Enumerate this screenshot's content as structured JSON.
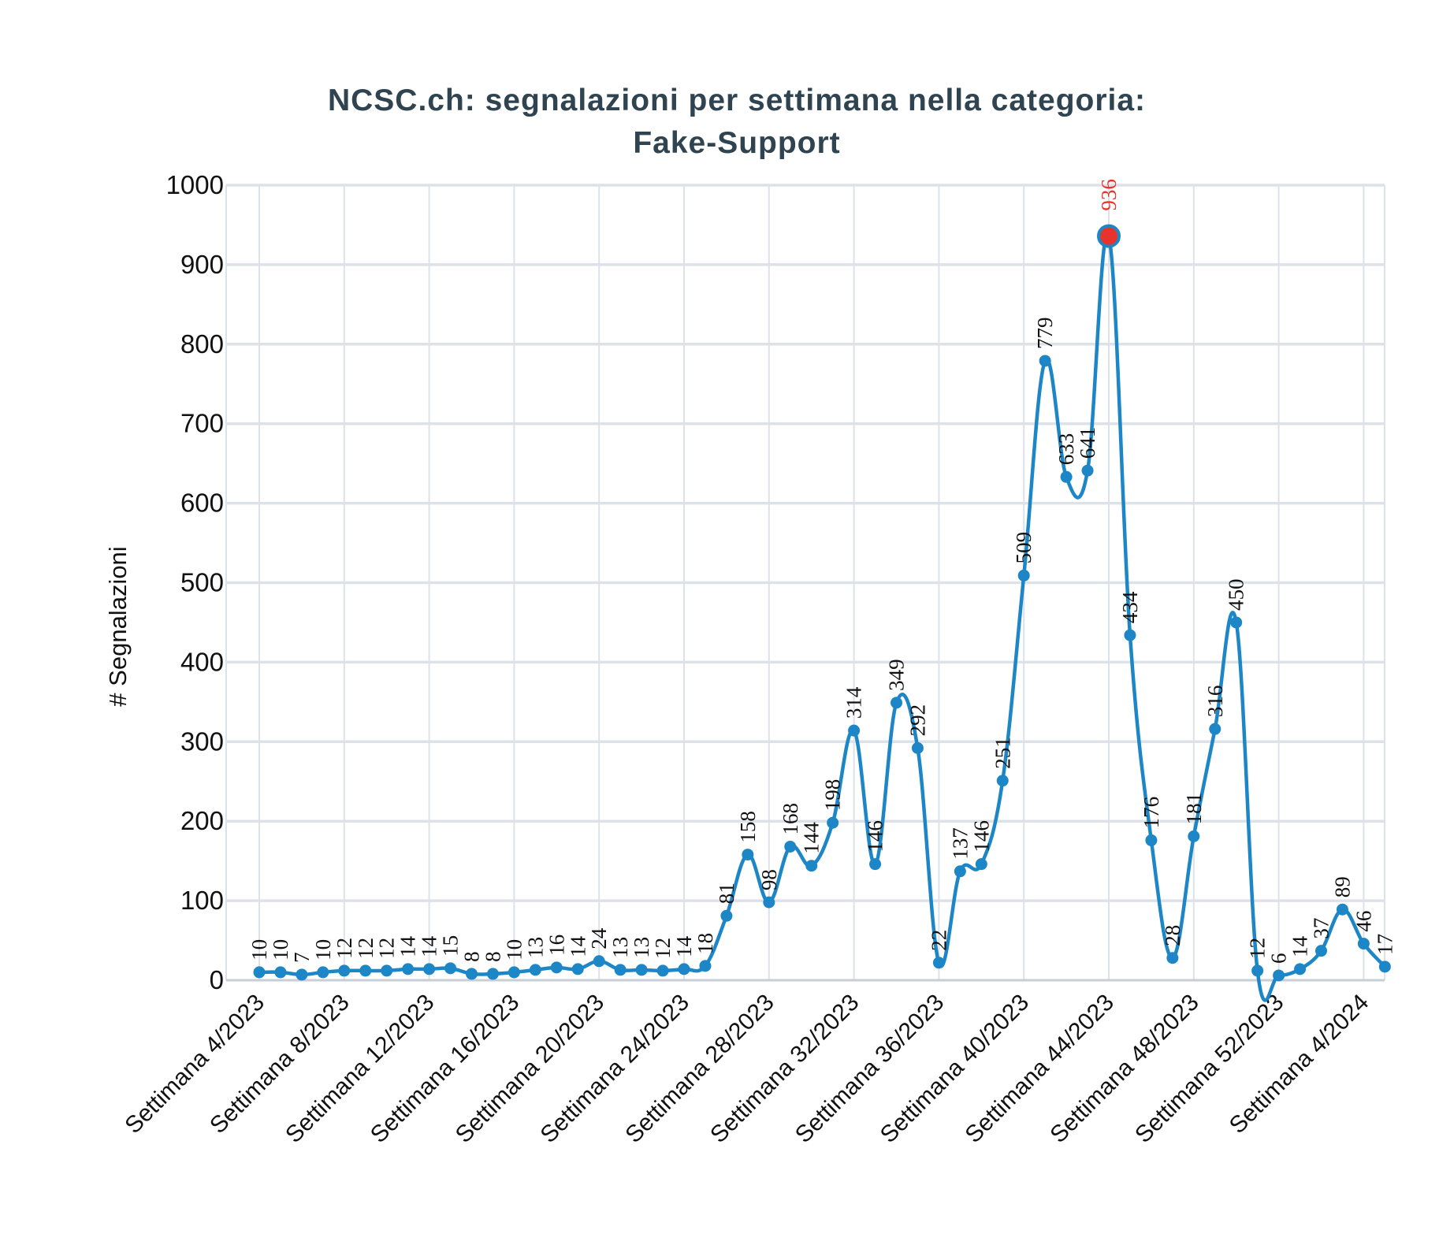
{
  "chart_data": {
    "type": "line",
    "title": "NCSC.ch: segnalazioni per settimana nella categoria:",
    "subtitle": "Fake-Support",
    "ylabel": "# Segnalazioni",
    "xlabel": "",
    "ylim": [
      0,
      1000
    ],
    "yticks": [
      0,
      100,
      200,
      300,
      400,
      500,
      600,
      700,
      800,
      900,
      1000
    ],
    "grid": true,
    "xtick_labels": [
      "Settimana 4/2023",
      "Settimana 8/2023",
      "Settimana 12/2023",
      "Settimana 16/2023",
      "Settimana 20/2023",
      "Settimana 24/2023",
      "Settimana 28/2023",
      "Settimana 32/2023",
      "Settimana 36/2023",
      "Settimana 40/2023",
      "Settimana 44/2023",
      "Settimana 48/2023",
      "Settimana 52/2023",
      "Settimana 4/2024"
    ],
    "x": [
      "Settimana 4/2023",
      "Settimana 5/2023",
      "Settimana 6/2023",
      "Settimana 7/2023",
      "Settimana 8/2023",
      "Settimana 9/2023",
      "Settimana 10/2023",
      "Settimana 11/2023",
      "Settimana 12/2023",
      "Settimana 13/2023",
      "Settimana 14/2023",
      "Settimana 15/2023",
      "Settimana 16/2023",
      "Settimana 17/2023",
      "Settimana 18/2023",
      "Settimana 19/2023",
      "Settimana 20/2023",
      "Settimana 21/2023",
      "Settimana 22/2023",
      "Settimana 23/2023",
      "Settimana 24/2023",
      "Settimana 25/2023",
      "Settimana 26/2023",
      "Settimana 27/2023",
      "Settimana 28/2023",
      "Settimana 29/2023",
      "Settimana 30/2023",
      "Settimana 31/2023",
      "Settimana 32/2023",
      "Settimana 33/2023",
      "Settimana 34/2023",
      "Settimana 35/2023",
      "Settimana 36/2023",
      "Settimana 37/2023",
      "Settimana 38/2023",
      "Settimana 39/2023",
      "Settimana 40/2023",
      "Settimana 41/2023",
      "Settimana 42/2023",
      "Settimana 43/2023",
      "Settimana 44/2023",
      "Settimana 45/2023",
      "Settimana 46/2023",
      "Settimana 47/2023",
      "Settimana 48/2023",
      "Settimana 49/2023",
      "Settimana 50/2023",
      "Settimana 51/2023",
      "Settimana 52/2023",
      "Settimana 1/2024",
      "Settimana 2/2024",
      "Settimana 3/2024",
      "Settimana 4/2024",
      "Settimana 5/2024"
    ],
    "series": [
      {
        "values": [
          10,
          10,
          7,
          10,
          12,
          12,
          12,
          14,
          14,
          15,
          8,
          8,
          10,
          13,
          16,
          14,
          24,
          13,
          13,
          12,
          14,
          18,
          81,
          158,
          98,
          168,
          144,
          198,
          314,
          146,
          349,
          292,
          22,
          137,
          146,
          251,
          509,
          779,
          633,
          641,
          936,
          434,
          176,
          28,
          181,
          316,
          450,
          12,
          6,
          14,
          37,
          89,
          46,
          17
        ],
        "color": "#1c86c6"
      }
    ],
    "highlight": {
      "x": "Settimana 44/2023",
      "value": 936,
      "color": "#e8332c"
    },
    "colors": {
      "line": "#1c86c6",
      "grid": "#dde1e8",
      "highlight": "#e8332c",
      "title": "#2f4450"
    }
  }
}
